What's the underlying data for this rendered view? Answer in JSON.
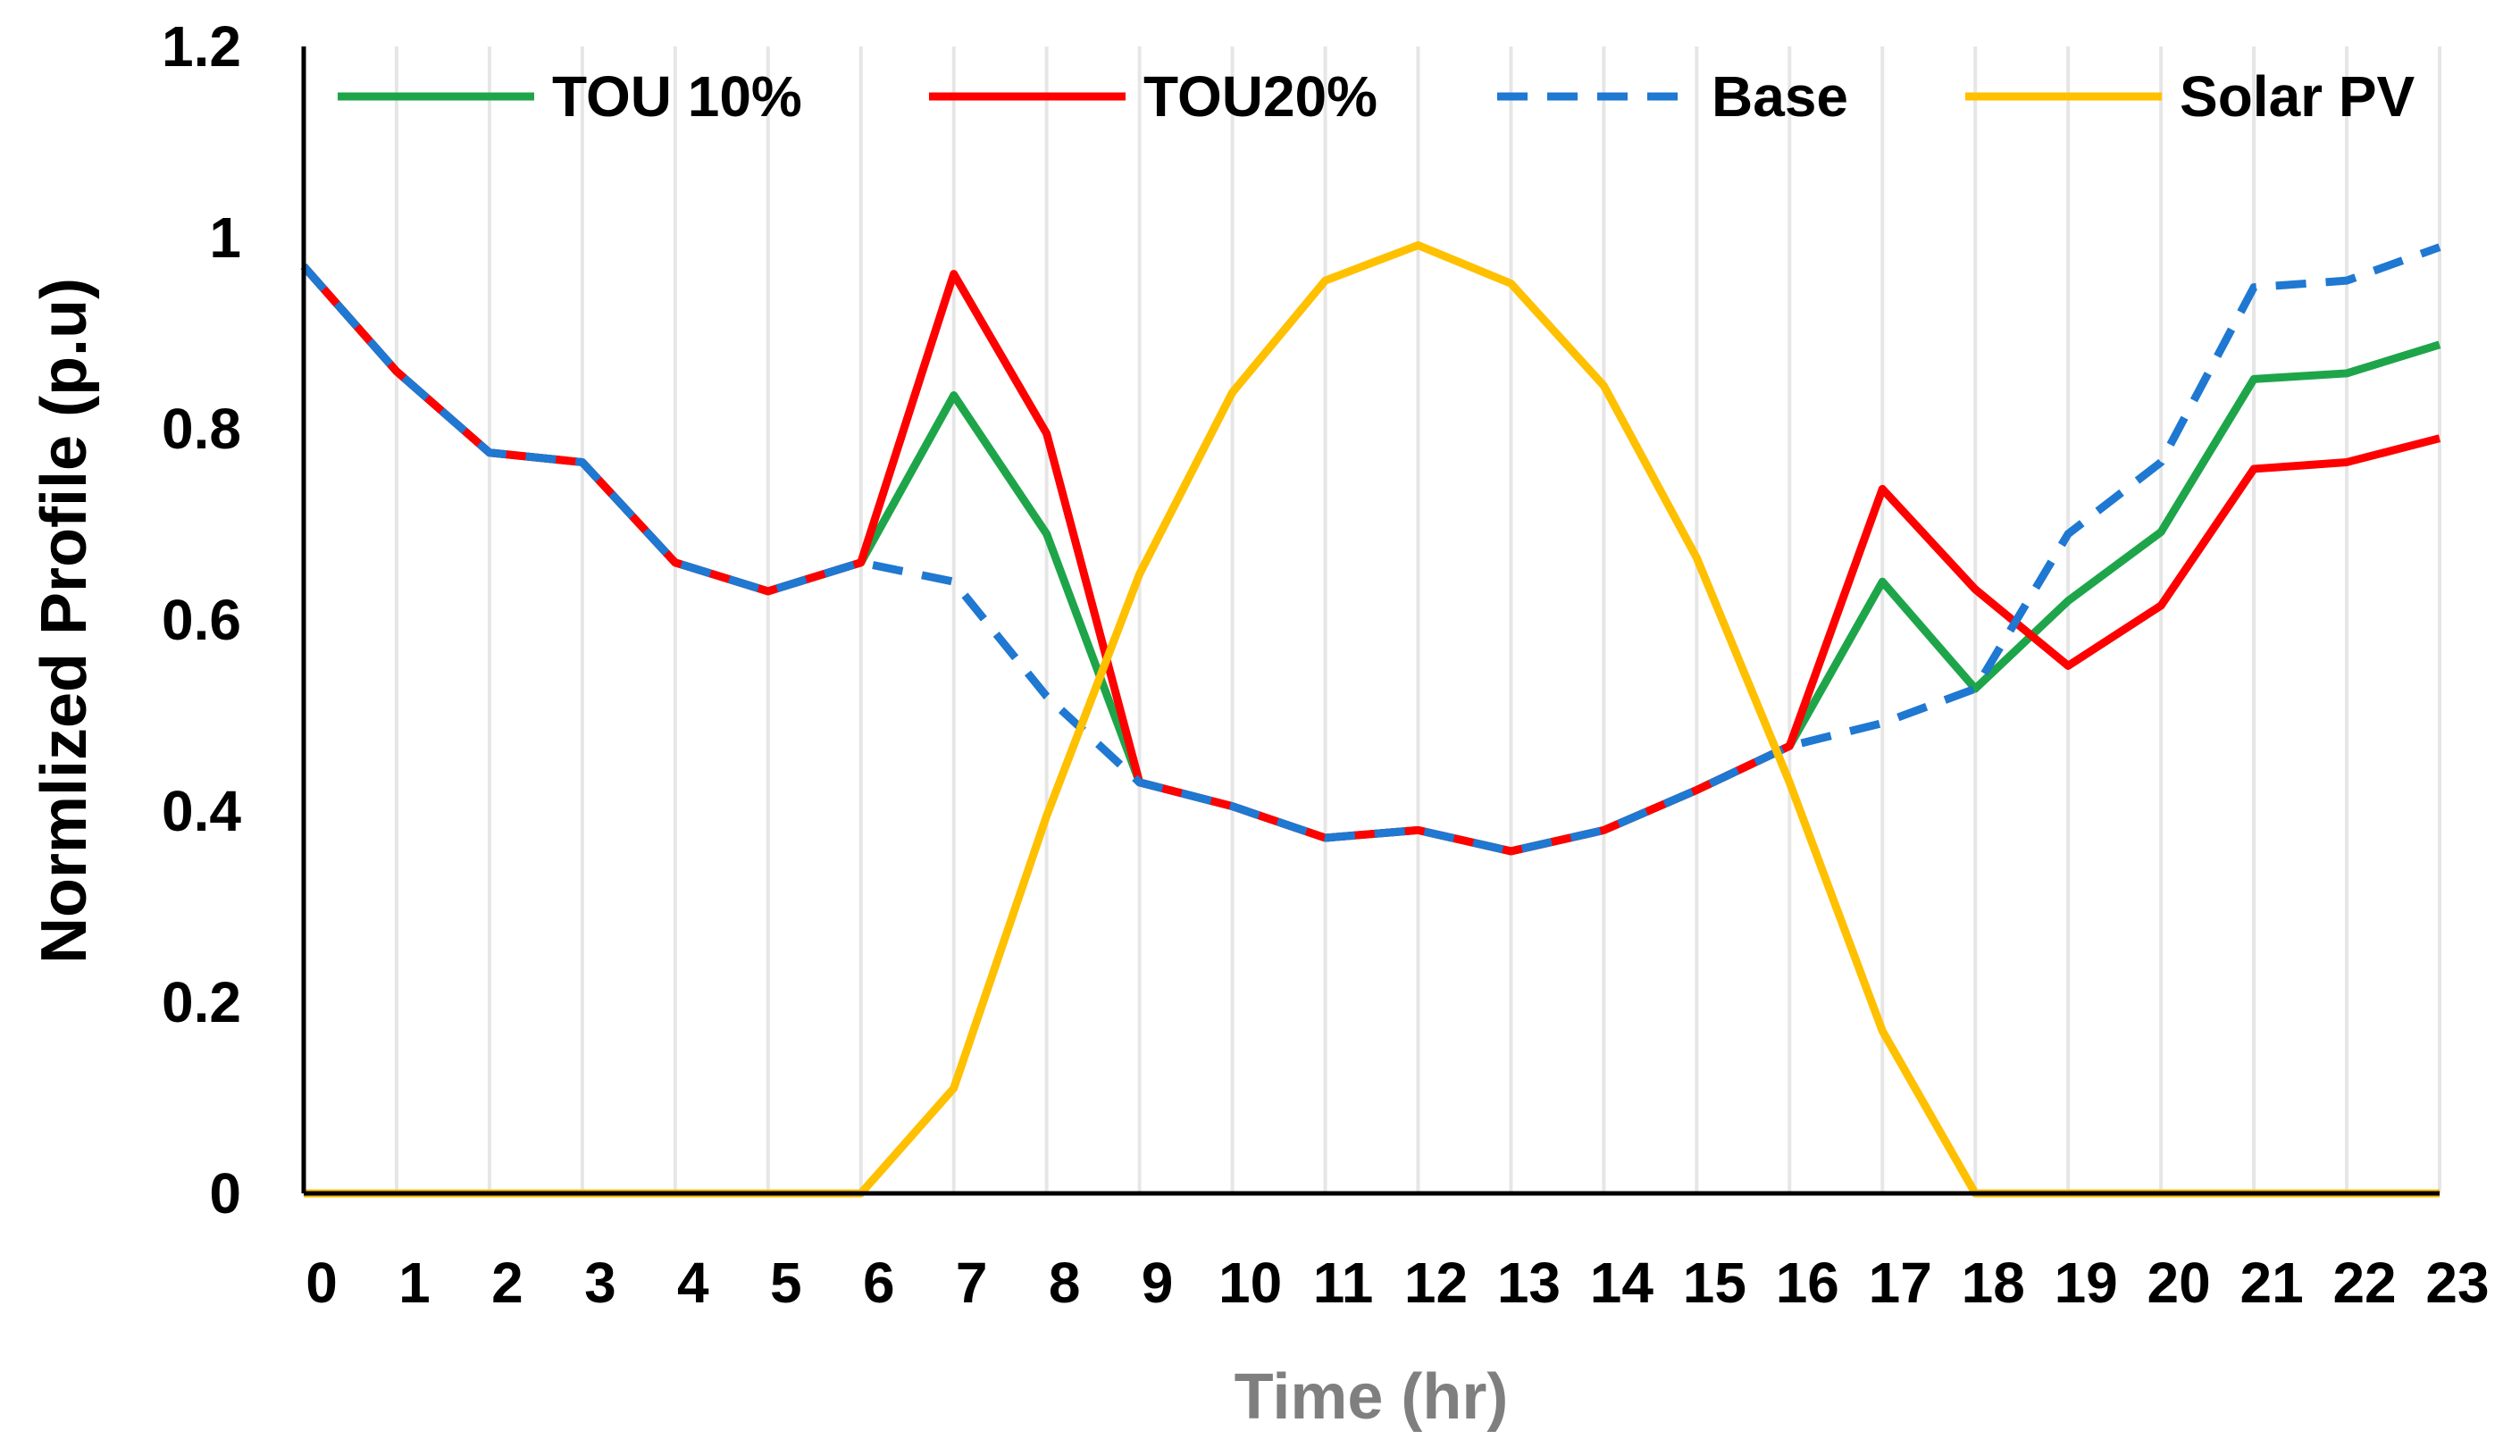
{
  "chart_data": {
    "type": "line",
    "title": "",
    "xlabel": "Time (hr)",
    "ylabel": "Normlized Profile (p.u)",
    "ylim": [
      0,
      1.2
    ],
    "yticks": [
      "0",
      "0.2",
      "0.4",
      "0.6",
      "0.8",
      "1",
      "1.2"
    ],
    "grid": "vertical",
    "legend": "top",
    "x": [
      0,
      1,
      2,
      3,
      4,
      5,
      6,
      7,
      8,
      9,
      10,
      11,
      12,
      13,
      14,
      15,
      16,
      17,
      18,
      19,
      20,
      21,
      22,
      23
    ],
    "series": [
      {
        "name": "TOU 10%",
        "color": "#1ea54a",
        "dash": "solid",
        "values": [
          0.97,
          0.86,
          0.775,
          0.765,
          0.66,
          0.63,
          0.66,
          0.835,
          0.69,
          0.43,
          0.405,
          0.372,
          0.38,
          0.358,
          0.38,
          0.422,
          0.468,
          0.64,
          0.528,
          0.62,
          0.692,
          0.852,
          0.858,
          0.888
        ]
      },
      {
        "name": "TOU20%",
        "color": "#ff0000",
        "dash": "solid",
        "values": [
          0.97,
          0.86,
          0.775,
          0.765,
          0.66,
          0.63,
          0.66,
          0.962,
          0.795,
          0.43,
          0.405,
          0.372,
          0.38,
          0.358,
          0.38,
          0.422,
          0.468,
          0.737,
          0.632,
          0.552,
          0.615,
          0.758,
          0.765,
          0.79
        ]
      },
      {
        "name": "Base",
        "color": "#1f78d1",
        "dash": "dashed",
        "values": [
          0.97,
          0.86,
          0.775,
          0.765,
          0.66,
          0.63,
          0.66,
          0.64,
          0.52,
          0.43,
          0.405,
          0.372,
          0.38,
          0.358,
          0.38,
          0.422,
          0.468,
          0.492,
          0.528,
          0.69,
          0.765,
          0.948,
          0.955,
          0.99
        ]
      },
      {
        "name": "Solar PV",
        "color": "#ffc000",
        "dash": "solid",
        "values": [
          0,
          0,
          0,
          0,
          0,
          0,
          0,
          0.11,
          0.395,
          0.648,
          0.838,
          0.955,
          0.992,
          0.952,
          0.845,
          0.665,
          0.43,
          0.17,
          0,
          0,
          0,
          0,
          0,
          0
        ]
      }
    ]
  }
}
